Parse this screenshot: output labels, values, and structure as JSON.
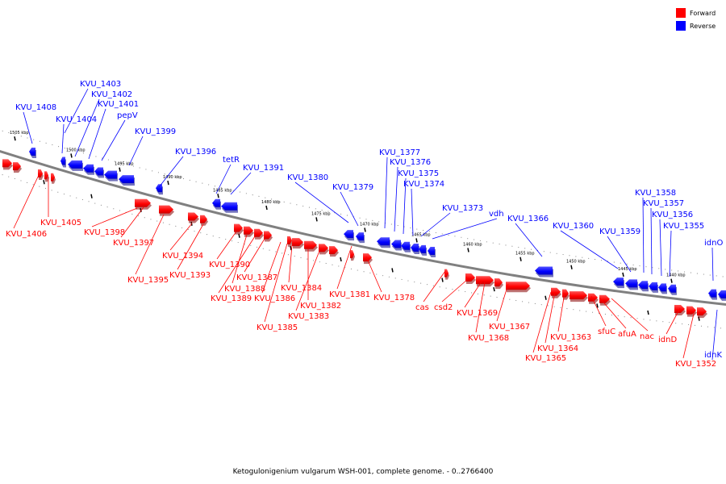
{
  "caption": "Ketogulonigenium vulgarum WSH-001, complete genome. - 0..2766400",
  "legend": [
    {
      "label": "Forward",
      "color": "#ff0000"
    },
    {
      "label": "Reverse",
      "color": "#0000ff"
    }
  ],
  "colors": {
    "forward": "#ff0000",
    "reverse": "#0000ff",
    "backbone": "#808080"
  },
  "ticks": [
    "1505 kbp",
    "1500 kbp",
    "1495 kbp",
    "1490 kbp",
    "1485 kbp",
    "1480 kbp",
    "1475 kbp",
    "1470 kbp",
    "1465 kbp",
    "1460 kbp",
    "1455 kbp",
    "1450 kbp",
    "1445 kbp",
    "1440 kbp"
  ],
  "reverse_labels": [
    "KVU_1408",
    "KVU_1403",
    "KVU_1402",
    "KVU_1401",
    "KVU_1404",
    "pepV",
    "KVU_1399",
    "KVU_1396",
    "tetR",
    "KVU_1391",
    "KVU_1380",
    "KVU_1379",
    "KVU_1377",
    "KVU_1376",
    "KVU_1375",
    "KVU_1374",
    "KVU_1373",
    "vdh",
    "KVU_1366",
    "KVU_1360",
    "KVU_1359",
    "KVU_1358",
    "KVU_1357",
    "KVU_1356",
    "KVU_1355",
    "idnO",
    "idnK"
  ],
  "forward_labels": [
    "KVU_1406",
    "KVU_1405",
    "KVU_1398",
    "KVU_1397",
    "KVU_1395",
    "KVU_1394",
    "KVU_1393",
    "KVU_1390",
    "KVU_1388",
    "KVU_1389",
    "KVU_1387",
    "KVU_1386",
    "KVU_1384",
    "KVU_1385",
    "KVU_1382",
    "KVU_1383",
    "KVU_1381",
    "KVU_1378",
    "cas",
    "csd2",
    "KVU_1369",
    "KVU_1368",
    "KVU_1367",
    "KVU_1363",
    "KVU_1364",
    "KVU_1365",
    "sfuC",
    "afuA",
    "nac",
    "idnD",
    "KVU_1352"
  ]
}
